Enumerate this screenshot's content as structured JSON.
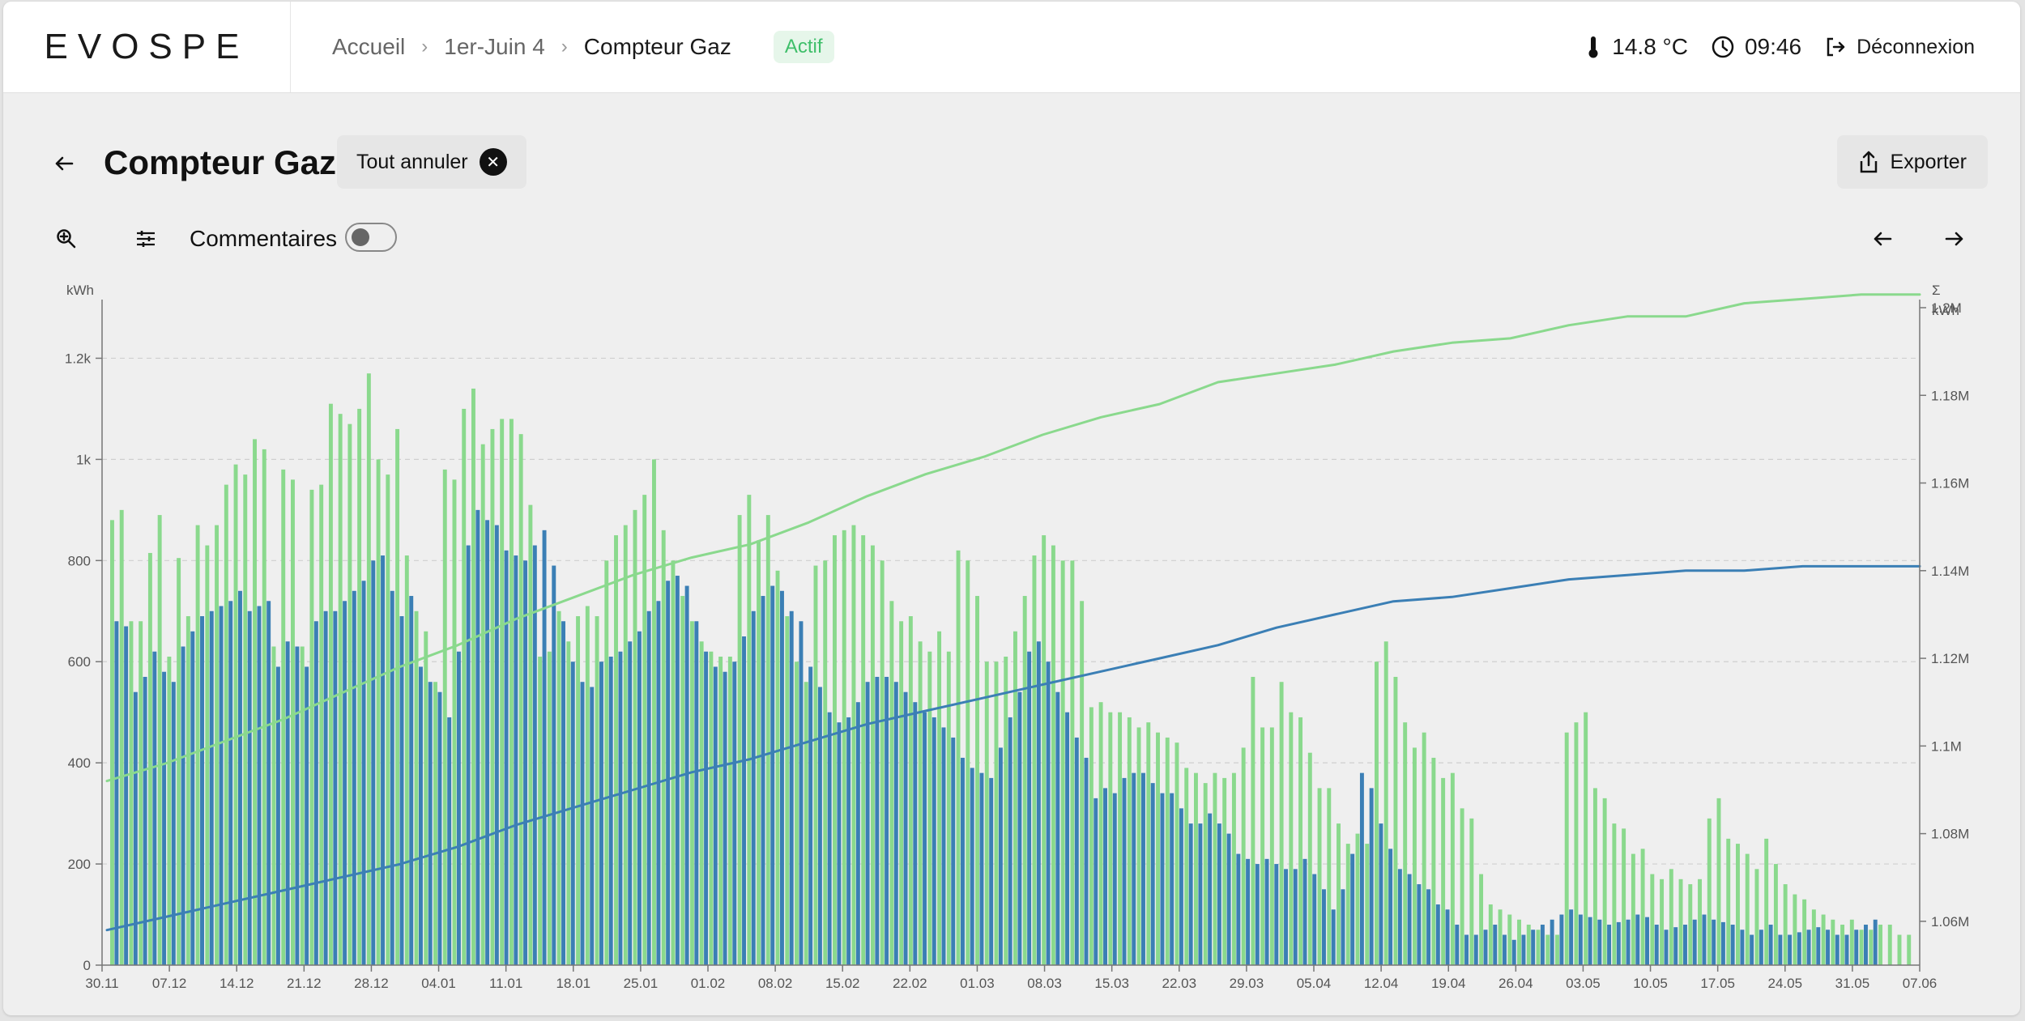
{
  "header": {
    "logo": "EVOSPE",
    "breadcrumb": [
      "Accueil",
      "1er-Juin 4",
      "Compteur Gaz"
    ],
    "status_badge": "Actif",
    "temperature": "14.8 °C",
    "time": "09:46",
    "logout_label": "Déconnexion"
  },
  "page": {
    "title": "Compteur Gaz",
    "cancel_all_label": "Tout annuler",
    "export_label": "Exporter",
    "comments_label": "Commentaires",
    "comments_enabled": false
  },
  "icons": {
    "back": "arrow-left-icon",
    "zoom": "zoom-in-icon",
    "settings": "sliders-icon",
    "prev": "arrow-left-icon",
    "next": "arrow-right-icon",
    "thermometer": "thermometer-icon",
    "clock": "clock-icon",
    "logout": "logout-icon",
    "export": "share-icon",
    "cancel": "close-circle-icon"
  },
  "colors": {
    "green_series": "#8ad98d",
    "blue_series": "#3b7fb5",
    "badge_text": "#3fbf6a",
    "badge_bg": "#e6f6ea"
  },
  "chart_data": {
    "type": "bar",
    "left_axis": {
      "unit": "kWh",
      "ylim": [
        0,
        1300
      ],
      "ticks": [
        0,
        200,
        400,
        600,
        800,
        1000,
        1200
      ],
      "tick_labels": [
        "0",
        "200",
        "400",
        "600",
        "800",
        "1k",
        "1.2k"
      ]
    },
    "right_axis": {
      "unit_lines": [
        "Σ",
        "kWh"
      ],
      "ylim": [
        1.05,
        1.2
      ],
      "ticks": [
        1.06,
        1.08,
        1.1,
        1.12,
        1.14,
        1.16,
        1.18,
        1.2
      ],
      "tick_labels": [
        "1.06M",
        "1.08M",
        "1.1M",
        "1.12M",
        "1.14M",
        "1.16M",
        "1.18M",
        "1.2M"
      ]
    },
    "x_tick_labels": [
      "30.11",
      "07.12",
      "14.12",
      "21.12",
      "28.12",
      "04.01",
      "11.01",
      "18.01",
      "25.01",
      "01.02",
      "08.02",
      "15.02",
      "22.02",
      "01.03",
      "08.03",
      "15.03",
      "22.03",
      "29.03",
      "05.04",
      "12.04",
      "19.04",
      "26.04",
      "03.05",
      "10.05",
      "17.05",
      "24.05",
      "31.05",
      "07.06"
    ],
    "grid": true,
    "series": [
      {
        "kind": "bar",
        "axis": "left",
        "color": "#8ad98d",
        "values": [
          880,
          900,
          680,
          680,
          815,
          890,
          610,
          805,
          690,
          870,
          830,
          870,
          950,
          990,
          970,
          1040,
          1020,
          630,
          980,
          960,
          630,
          940,
          950,
          1110,
          1090,
          1070,
          1100,
          1170,
          1000,
          970,
          1060,
          810,
          700,
          660,
          560,
          980,
          960,
          1100,
          1140,
          1030,
          1060,
          1080,
          1080,
          1050,
          910,
          610,
          620,
          700,
          640,
          690,
          710,
          690,
          800,
          850,
          870,
          900,
          930,
          1000,
          860,
          800,
          730,
          680,
          640,
          620,
          610,
          610,
          890,
          930,
          840,
          890,
          780,
          690,
          600,
          560,
          790,
          800,
          850,
          860,
          870,
          850,
          830,
          800,
          720,
          680,
          690,
          640,
          620,
          660,
          620,
          820,
          800,
          730,
          600,
          600,
          610,
          660,
          730,
          810,
          850,
          830,
          800,
          800,
          720,
          510,
          520,
          500,
          500,
          490,
          470,
          480,
          460,
          450,
          440,
          390,
          380,
          360,
          380,
          370,
          380,
          430,
          570,
          470,
          470,
          560,
          500,
          490,
          420,
          350,
          350,
          280,
          240,
          260,
          240,
          600,
          640,
          570,
          480,
          430,
          460,
          410,
          370,
          380,
          310,
          290,
          180,
          120,
          110,
          100,
          90,
          80,
          70,
          60,
          60,
          460,
          480,
          500,
          350,
          330,
          280,
          270,
          220,
          230,
          180,
          170,
          190,
          170,
          160,
          170,
          290,
          330,
          250,
          240,
          220,
          190,
          250,
          200,
          160,
          140,
          130,
          110,
          100,
          90,
          80,
          90,
          70,
          70,
          80,
          80,
          60,
          60
        ]
      },
      {
        "kind": "bar",
        "axis": "left",
        "color": "#3b7fb5",
        "values": [
          680,
          670,
          540,
          570,
          620,
          580,
          560,
          630,
          660,
          690,
          700,
          710,
          720,
          740,
          700,
          710,
          720,
          590,
          640,
          630,
          590,
          680,
          700,
          700,
          720,
          740,
          760,
          800,
          810,
          740,
          690,
          730,
          590,
          560,
          540,
          490,
          620,
          830,
          900,
          880,
          870,
          820,
          810,
          800,
          830,
          860,
          790,
          680,
          600,
          560,
          550,
          600,
          610,
          620,
          640,
          660,
          700,
          720,
          760,
          770,
          750,
          680,
          620,
          590,
          580,
          600,
          650,
          700,
          730,
          750,
          740,
          700,
          680,
          590,
          550,
          500,
          480,
          490,
          520,
          560,
          570,
          570,
          560,
          540,
          520,
          500,
          490,
          470,
          450,
          410,
          390,
          380,
          370,
          430,
          490,
          540,
          620,
          640,
          600,
          540,
          500,
          450,
          410,
          330,
          350,
          340,
          370,
          380,
          380,
          360,
          340,
          340,
          310,
          280,
          280,
          300,
          280,
          260,
          220,
          210,
          200,
          210,
          200,
          190,
          190,
          210,
          180,
          150,
          110,
          150,
          220,
          380,
          350,
          280,
          230,
          190,
          180,
          160,
          150,
          120,
          110,
          80,
          60,
          60,
          70,
          80,
          60,
          50,
          60,
          70,
          80,
          90,
          100,
          110,
          100,
          95,
          90,
          80,
          85,
          90,
          100,
          95,
          80,
          70,
          75,
          80,
          90,
          100,
          90,
          85,
          80,
          70,
          60,
          70,
          80,
          60,
          60,
          65,
          70,
          75,
          70,
          60,
          60,
          70,
          80,
          90
        ]
      },
      {
        "kind": "line",
        "axis": "right",
        "color": "#8ad98d",
        "name": "cumul",
        "values": [
          1.092,
          1.096,
          1.101,
          1.106,
          1.112,
          1.118,
          1.123,
          1.129,
          1.134,
          1.139,
          1.143,
          1.146,
          1.151,
          1.157,
          1.162,
          1.166,
          1.171,
          1.175,
          1.178,
          1.183,
          1.185,
          1.187,
          1.19,
          1.192,
          1.193,
          1.196,
          1.198,
          1.198,
          1.201,
          1.202,
          1.203,
          1.203
        ]
      },
      {
        "kind": "line",
        "axis": "right",
        "color": "#3b7fb5",
        "name": "cumul",
        "values": [
          1.058,
          1.061,
          1.064,
          1.067,
          1.07,
          1.073,
          1.077,
          1.082,
          1.086,
          1.09,
          1.094,
          1.097,
          1.101,
          1.105,
          1.108,
          1.111,
          1.114,
          1.117,
          1.12,
          1.123,
          1.127,
          1.13,
          1.133,
          1.134,
          1.136,
          1.138,
          1.139,
          1.14,
          1.14,
          1.141,
          1.141,
          1.141
        ]
      }
    ]
  }
}
